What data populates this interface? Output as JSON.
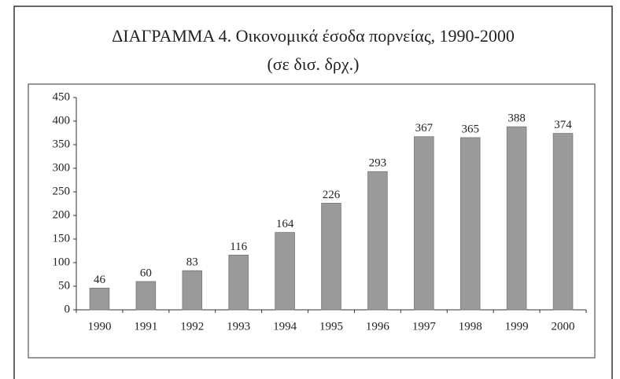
{
  "chart_data": {
    "type": "bar",
    "title": "ΔΙΑΓΡΑΜΜΑ 4. Οικονομικά έσοδα πορνείας, 1990-2000",
    "subtitle": "(σε δισ. δρχ.)",
    "categories": [
      "1990",
      "1991",
      "1992",
      "1993",
      "1994",
      "1995",
      "1996",
      "1997",
      "1998",
      "1999",
      "2000"
    ],
    "values": [
      46,
      60,
      83,
      116,
      164,
      226,
      293,
      367,
      365,
      388,
      374
    ],
    "color": "#9a9a9a",
    "ylim": [
      0,
      450
    ],
    "yticks": [
      0,
      50,
      100,
      150,
      200,
      250,
      300,
      350,
      400,
      450
    ],
    "grid": false
  }
}
